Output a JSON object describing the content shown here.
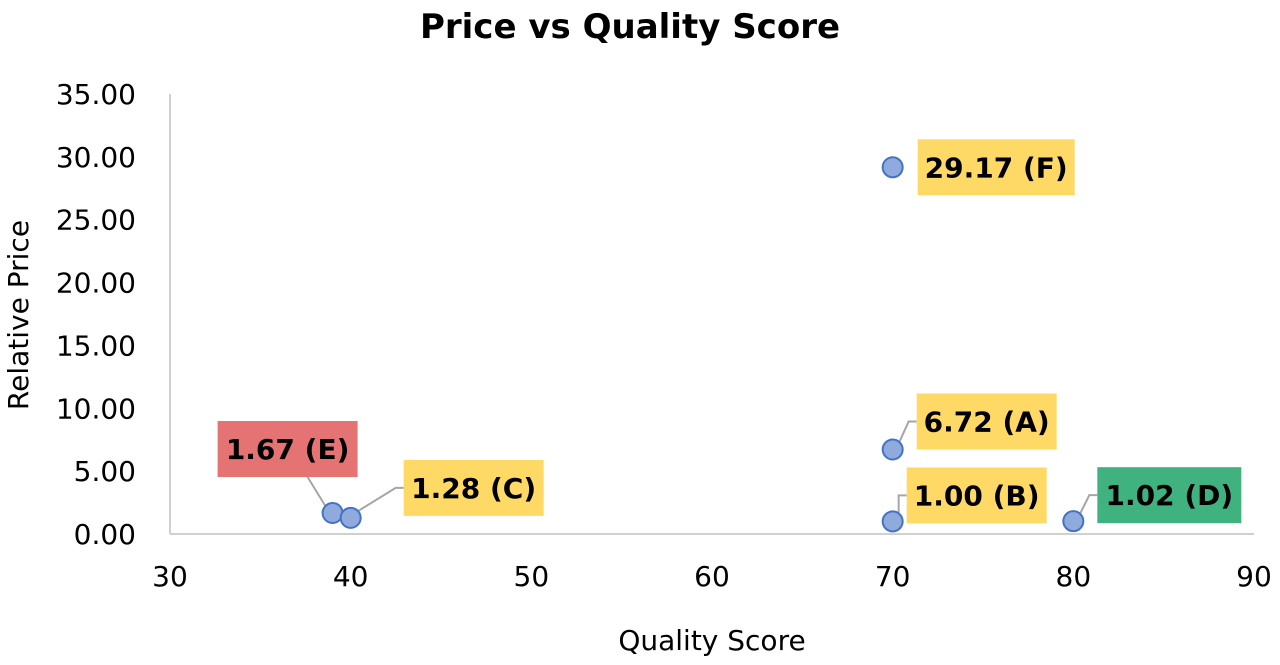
{
  "chart_data": {
    "type": "scatter",
    "title": "Price vs Quality Score",
    "xlabel": "Quality Score",
    "ylabel": "Relative Price",
    "xlim": [
      30,
      90
    ],
    "ylim": [
      0,
      35
    ],
    "x_ticks": [
      "30",
      "40",
      "50",
      "60",
      "70",
      "80",
      "90"
    ],
    "y_ticks": [
      "0.00",
      "5.00",
      "10.00",
      "15.00",
      "20.00",
      "25.00",
      "30.00",
      "35.00"
    ],
    "grid": false,
    "marker_color": "#8FAADC",
    "marker_edge_color": "#4472C4",
    "points": [
      {
        "x": 39,
        "y": 1.67,
        "label": "1.67 (E)",
        "label_color": "#E57373"
      },
      {
        "x": 40,
        "y": 1.28,
        "label": "1.28 (C)",
        "label_color": "#FFD966"
      },
      {
        "x": 70,
        "y": 29.17,
        "label": "29.17 (F)",
        "label_color": "#FFD966"
      },
      {
        "x": 70,
        "y": 6.72,
        "label": "6.72 (A)",
        "label_color": "#FFD966"
      },
      {
        "x": 70,
        "y": 1.0,
        "label": "1.00 (B)",
        "label_color": "#FFD966"
      },
      {
        "x": 80,
        "y": 1.02,
        "label": "1.02 (D)",
        "label_color": "#3FB27F"
      }
    ]
  }
}
